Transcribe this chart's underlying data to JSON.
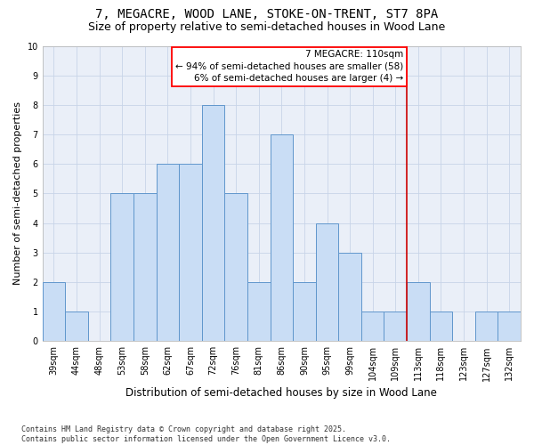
{
  "title": "7, MEGACRE, WOOD LANE, STOKE-ON-TRENT, ST7 8PA",
  "subtitle": "Size of property relative to semi-detached houses in Wood Lane",
  "xlabel": "Distribution of semi-detached houses by size in Wood Lane",
  "ylabel": "Number of semi-detached properties",
  "categories": [
    "39sqm",
    "44sqm",
    "48sqm",
    "53sqm",
    "58sqm",
    "62sqm",
    "67sqm",
    "72sqm",
    "76sqm",
    "81sqm",
    "86sqm",
    "90sqm",
    "95sqm",
    "99sqm",
    "104sqm",
    "109sqm",
    "113sqm",
    "118sqm",
    "123sqm",
    "127sqm",
    "132sqm"
  ],
  "values": [
    2,
    1,
    0,
    5,
    5,
    6,
    6,
    8,
    5,
    2,
    7,
    2,
    4,
    3,
    1,
    1,
    2,
    1,
    0,
    1,
    1
  ],
  "bar_color": "#c9ddf5",
  "bar_edge_color": "#6096cc",
  "redline_x": 15.5,
  "annotation_line1": "7 MEGACRE: 110sqm",
  "annotation_line2": "← 94% of semi-detached houses are smaller (58)",
  "annotation_line3": "6% of semi-detached houses are larger (4) →",
  "annotation_box_color": "white",
  "annotation_box_edge": "red",
  "redline_color": "#cc0000",
  "ylim": [
    0,
    10
  ],
  "yticks": [
    0,
    1,
    2,
    3,
    4,
    5,
    6,
    7,
    8,
    9,
    10
  ],
  "grid_color": "#c8d4e8",
  "bg_color": "#eaeff8",
  "footer": "Contains HM Land Registry data © Crown copyright and database right 2025.\nContains public sector information licensed under the Open Government Licence v3.0.",
  "title_fontsize": 10,
  "subtitle_fontsize": 9,
  "xlabel_fontsize": 8.5,
  "ylabel_fontsize": 8,
  "tick_fontsize": 7,
  "annotation_fontsize": 7.5,
  "footer_fontsize": 6
}
